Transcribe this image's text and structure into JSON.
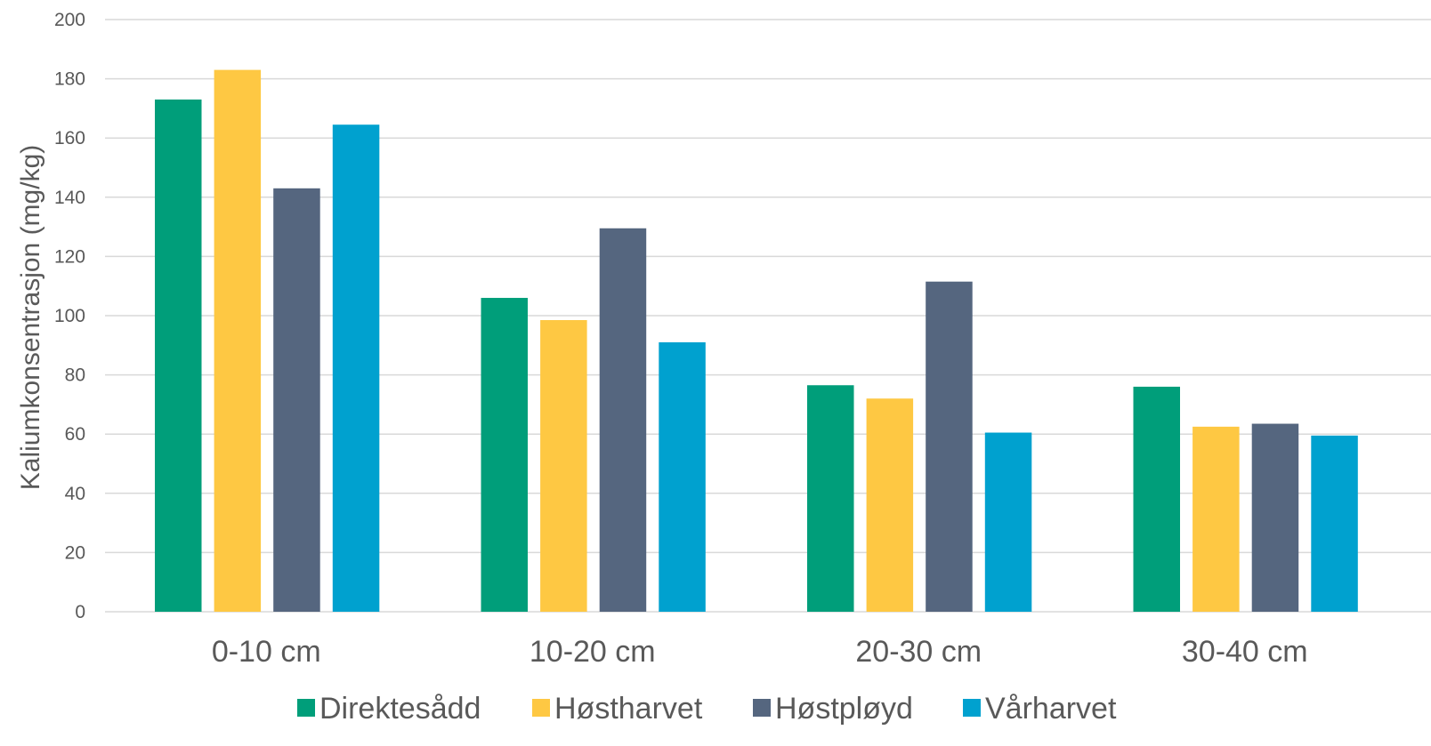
{
  "chart_data": {
    "type": "bar",
    "title": "",
    "xlabel": "",
    "ylabel": "Kaliumkonsentrasjon (mg/kg)",
    "ylim": [
      0,
      200
    ],
    "yticks": [
      0,
      20,
      40,
      60,
      80,
      100,
      120,
      140,
      160,
      180,
      200
    ],
    "grid": true,
    "legend_position": "bottom",
    "categories": [
      "0-10 cm",
      "10-20 cm",
      "20-30 cm",
      "30-40 cm"
    ],
    "series": [
      {
        "name": "Direktesådd",
        "color": "#009e7a",
        "values": [
          173,
          106,
          76.5,
          76
        ]
      },
      {
        "name": "Høstharvet",
        "color": "#fec843",
        "values": [
          183,
          98.5,
          72,
          62.5
        ]
      },
      {
        "name": "Høstpløyd",
        "color": "#55667f",
        "values": [
          143,
          129.5,
          111.5,
          63.5
        ]
      },
      {
        "name": "Vårharvet",
        "color": "#00a1cf",
        "values": [
          164.5,
          91,
          60.5,
          59.5
        ]
      }
    ]
  }
}
